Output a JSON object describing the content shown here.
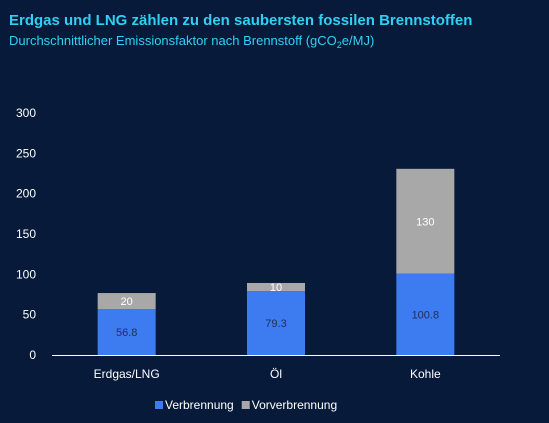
{
  "chart_data": {
    "type": "bar",
    "stacked": true,
    "title": "Erdgas und LNG zählen zu den saubersten fossilen Brennstoffen",
    "subtitle": {
      "before": "Durchschnittlicher Emissionsfaktor nach Brennstoff (gCO",
      "sub": "2",
      "after": "e/MJ)"
    },
    "categories": [
      "Erdgas/LNG",
      "Öl",
      "Kohle"
    ],
    "series": [
      {
        "name": "Verbrennung",
        "values": [
          56.8,
          79.3,
          100.8
        ],
        "color": "#3d7bf0"
      },
      {
        "name": "Vorverbrennung",
        "values": [
          20,
          10,
          130
        ],
        "color": "#a8a8a8"
      }
    ],
    "data_labels": [
      [
        "56.8",
        "79.3",
        "100.8"
      ],
      [
        "20",
        "10",
        "130"
      ]
    ],
    "y_ticks": [
      "0",
      "50",
      "100",
      "150",
      "200",
      "250",
      "300"
    ],
    "ylim": [
      0,
      300
    ],
    "grid": false,
    "legend": "bottom-center",
    "colors": {
      "background": "#071a3a",
      "title": "#2fd0f5",
      "axis": "#ffffff"
    }
  }
}
